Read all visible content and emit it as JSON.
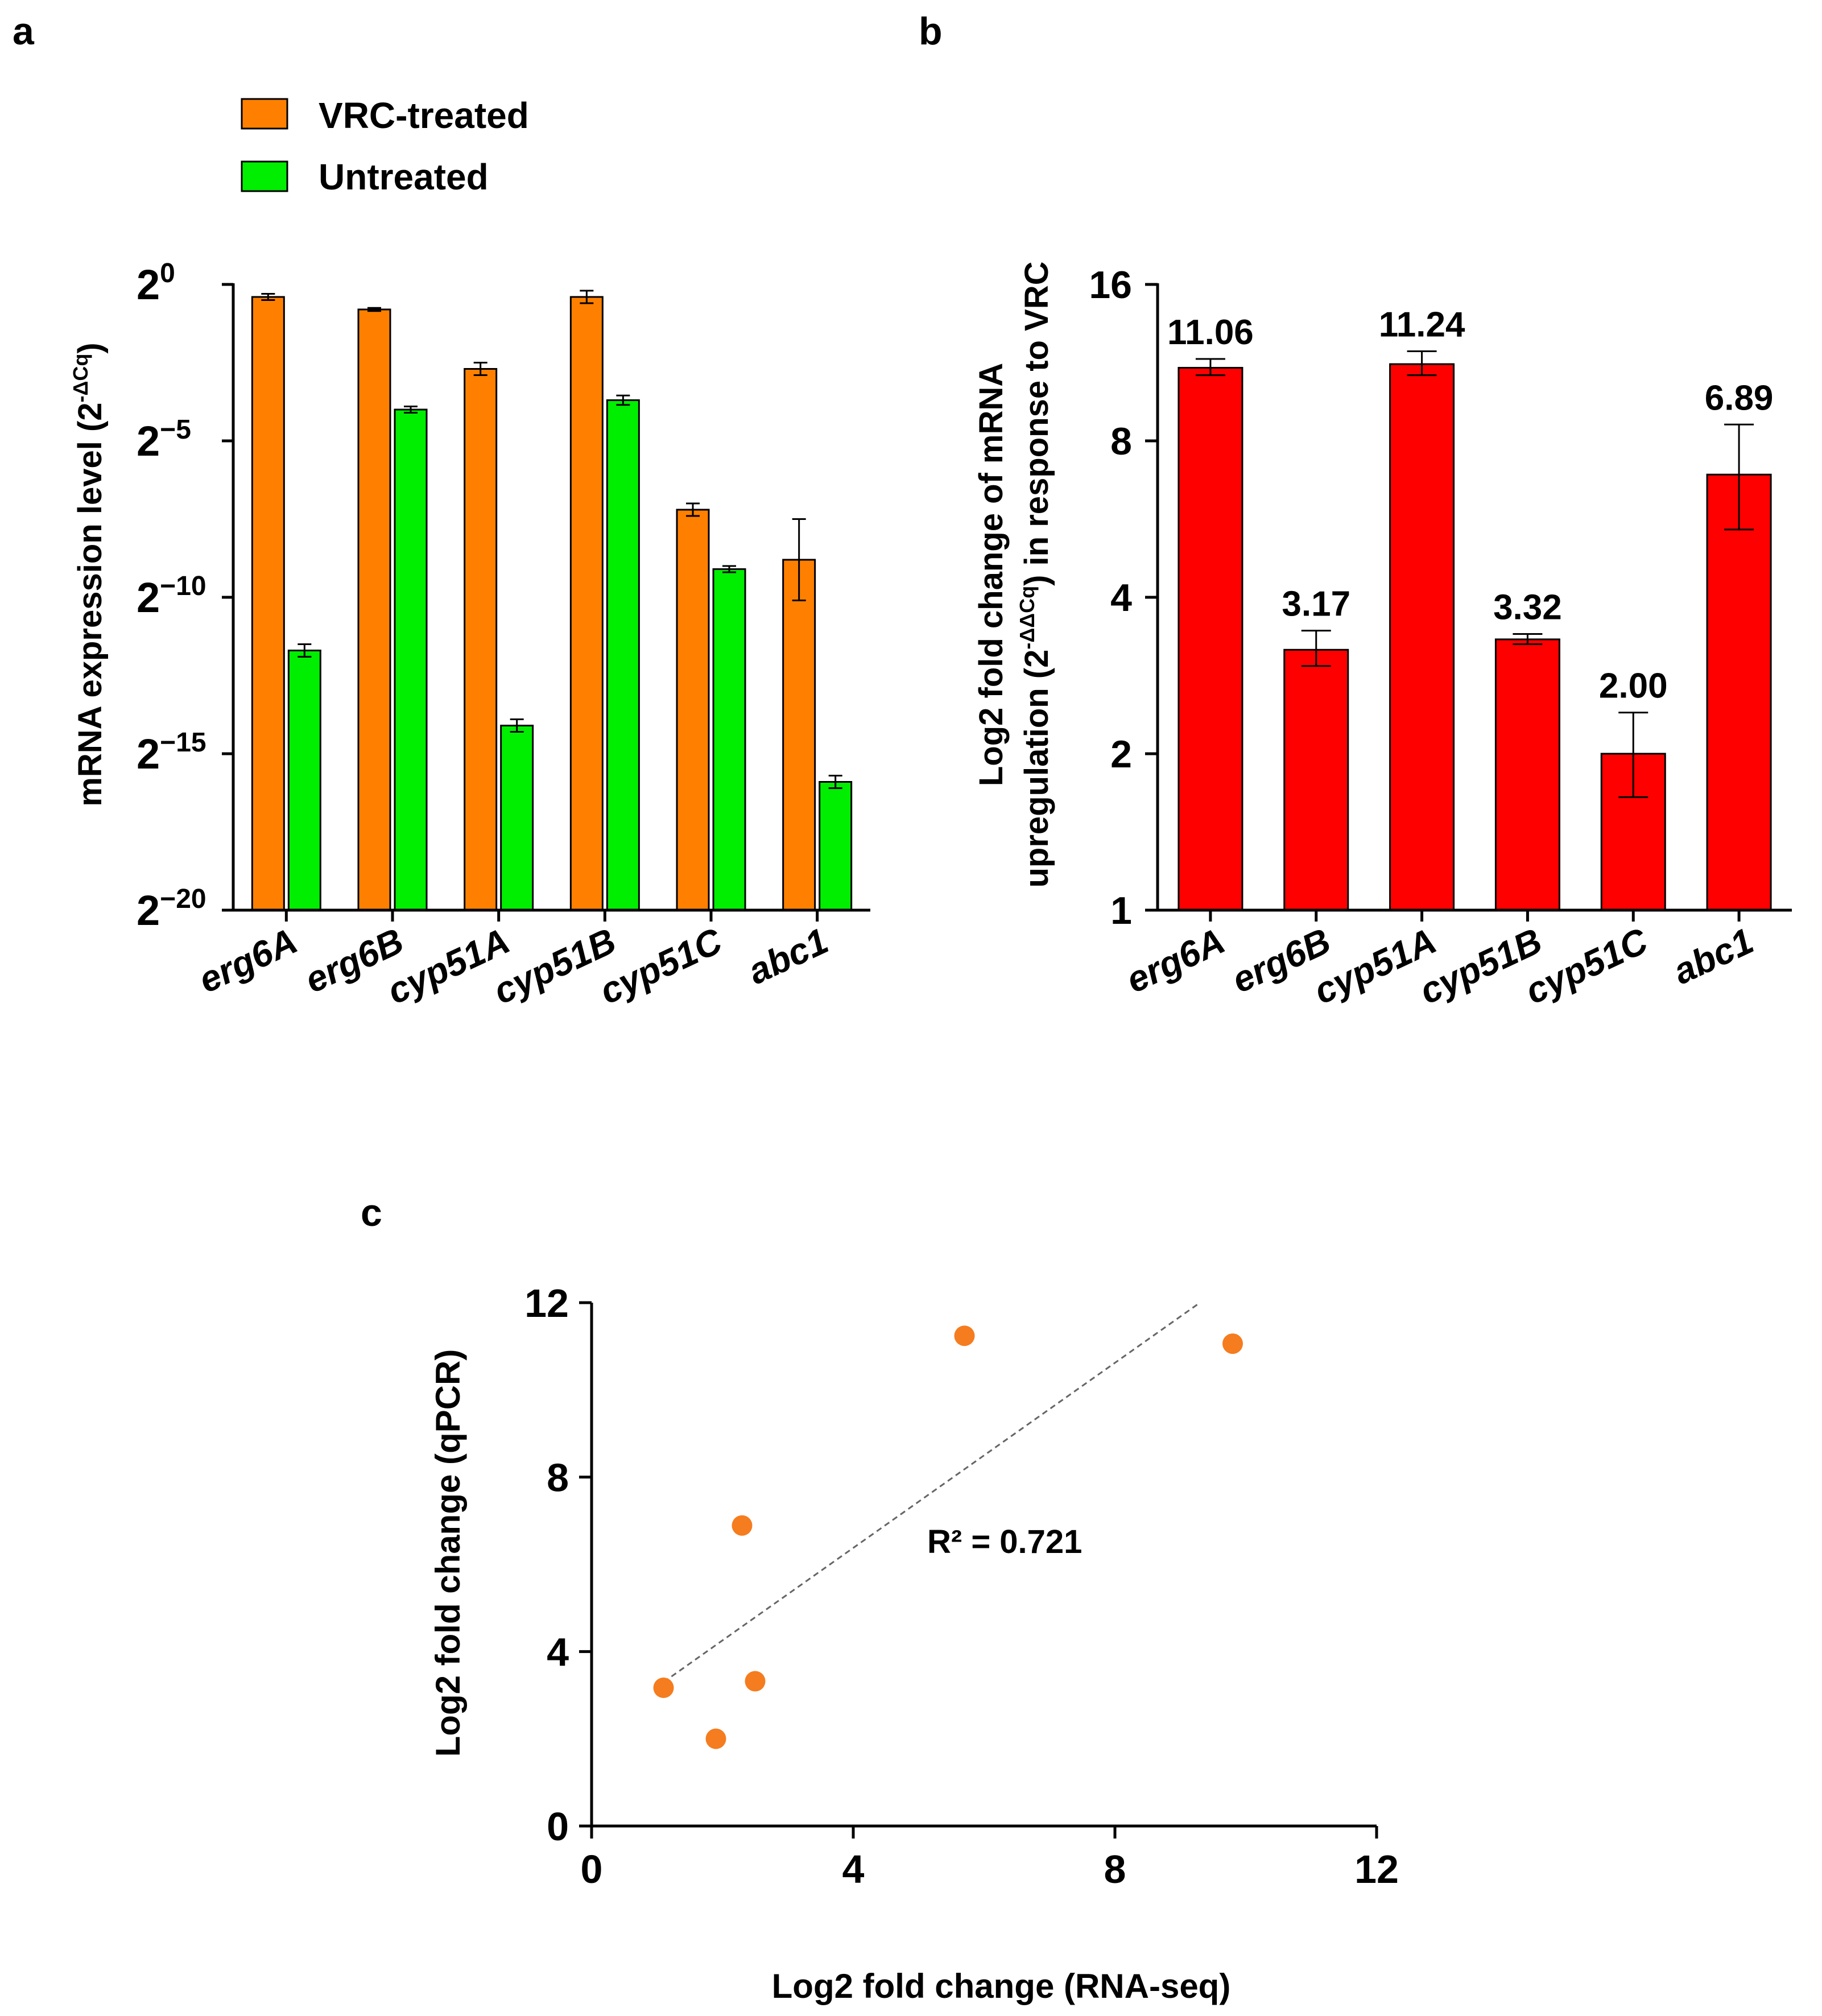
{
  "panel_labels": {
    "a": "a",
    "b": "b",
    "c": "c"
  },
  "colors": {
    "vrc": "#ff8000",
    "untreated": "#00ee00",
    "foldchange": "#ff0000",
    "scatter": "#f57c1f",
    "axis": "#000000",
    "trend": "#666666"
  },
  "chart_data": [
    {
      "panel": "a",
      "type": "bar",
      "title": "",
      "ylabel_main": "mRNA expression level (2",
      "ylabel_sup": "-ΔCq",
      "ylabel_close": ")",
      "xlabel": "",
      "scale": "log2",
      "ylim_exponent": [
        -20,
        0
      ],
      "yticks": [
        {
          "base": "2",
          "exp": "0",
          "value": 0
        },
        {
          "base": "2",
          "exp": "−5",
          "value": -5
        },
        {
          "base": "2",
          "exp": "−10",
          "value": -10
        },
        {
          "base": "2",
          "exp": "−15",
          "value": -15
        },
        {
          "base": "2",
          "exp": "−20",
          "value": -20
        }
      ],
      "categories": [
        "erg6A",
        "erg6B",
        "cyp51A",
        "cyp51B",
        "cyp51C",
        "abc1"
      ],
      "legend": {
        "position": "top-left",
        "entries": [
          "VRC-treated",
          "Untreated"
        ]
      },
      "series": [
        {
          "name": "VRC-treated",
          "values_log2": [
            -0.4,
            -0.8,
            -2.7,
            -0.4,
            -7.2,
            -8.8
          ],
          "error_log2": [
            0.1,
            0.05,
            0.2,
            0.2,
            0.2,
            1.3
          ]
        },
        {
          "name": "Untreated",
          "values_log2": [
            -11.7,
            -4.0,
            -14.1,
            -3.7,
            -9.1,
            -15.9
          ],
          "error_log2": [
            0.2,
            0.1,
            0.2,
            0.15,
            0.1,
            0.2
          ]
        }
      ]
    },
    {
      "panel": "b",
      "type": "bar",
      "title": "",
      "ylabel_line1": "Log2 fold change of mRNA",
      "ylabel_line2_pre": "upregulation (2",
      "ylabel_line2_sup": "-ΔΔCq",
      "ylabel_line2_post": ") in response to VRC",
      "xlabel": "",
      "scale": "log2",
      "ylim": [
        1,
        16
      ],
      "yticks": [
        "1",
        "2",
        "4",
        "8",
        "16"
      ],
      "categories": [
        "erg6A",
        "erg6B",
        "cyp51A",
        "cyp51B",
        "cyp51C",
        "abc1"
      ],
      "values": [
        11.06,
        3.17,
        11.24,
        3.32,
        2.0,
        6.89
      ],
      "data_labels": [
        "11.06",
        "3.17",
        "11.24",
        "3.32",
        "2.00",
        "6.89"
      ],
      "error_upper": [
        11.5,
        3.45,
        11.9,
        3.4,
        2.4,
        8.6
      ],
      "error_lower": [
        10.7,
        2.95,
        10.7,
        3.25,
        1.65,
        5.4
      ]
    },
    {
      "panel": "c",
      "type": "scatter",
      "title": "",
      "xlabel": "Log2 fold change (RNA-seq)",
      "ylabel": "Log2 fold change (qPCR)",
      "xlim": [
        0,
        12
      ],
      "ylim": [
        0,
        12
      ],
      "xticks": [
        "0",
        "4",
        "8",
        "12"
      ],
      "yticks": [
        "0",
        "4",
        "8",
        "12"
      ],
      "points": [
        {
          "x": 1.1,
          "y": 3.17
        },
        {
          "x": 1.9,
          "y": 2.0
        },
        {
          "x": 2.3,
          "y": 6.89
        },
        {
          "x": 2.5,
          "y": 3.32
        },
        {
          "x": 5.7,
          "y": 11.24
        },
        {
          "x": 9.8,
          "y": 11.06
        }
      ],
      "trendline": {
        "x1": 1.1,
        "y1": 3.3,
        "x2": 9.3,
        "y2": 12.0,
        "style": "dashed"
      },
      "annotation": "R² = 0.721"
    }
  ]
}
